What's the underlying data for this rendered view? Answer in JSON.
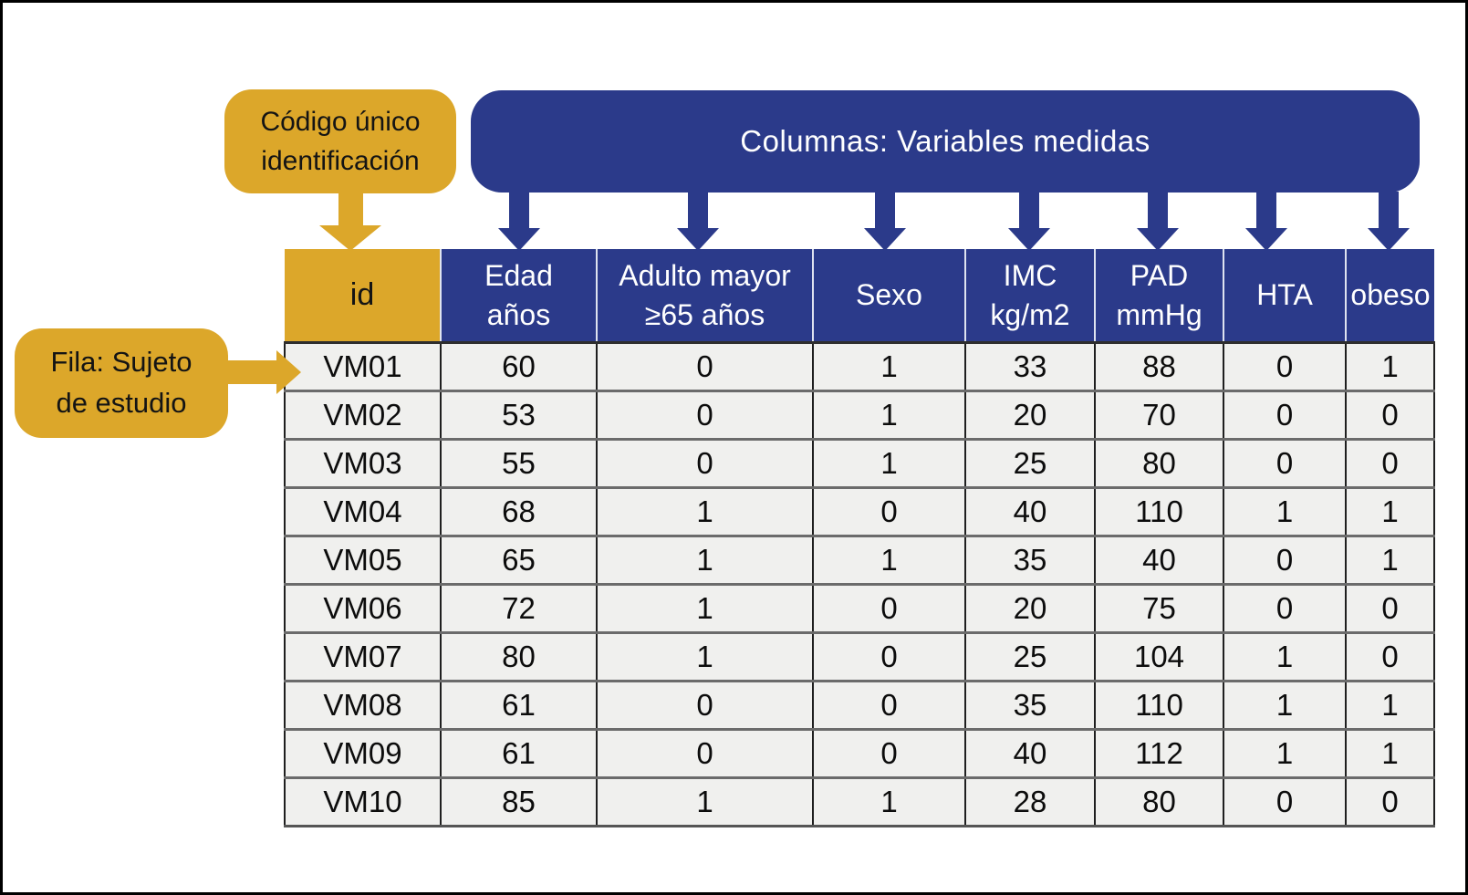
{
  "colors": {
    "accent_yellow": "#dca72a",
    "accent_blue": "#2b3a8a",
    "cell_background": "#f0f0ee"
  },
  "chart_data": {
    "type": "table",
    "annotations": {
      "id_callout": "Código único\nidentificación",
      "columns_banner": "Columnas: Variables medidas",
      "row_callout": "Fila: Sujeto\nde estudio"
    },
    "columns": [
      "id",
      "Edad\naños",
      "Adulto mayor\n≥65 años",
      "Sexo",
      "IMC\nkg/m2",
      "PAD\nmmHg",
      "HTA",
      "obeso"
    ],
    "rows": [
      [
        "VM01",
        60,
        0,
        1,
        33,
        88,
        0,
        1
      ],
      [
        "VM02",
        53,
        0,
        1,
        20,
        70,
        0,
        0
      ],
      [
        "VM03",
        55,
        0,
        1,
        25,
        80,
        0,
        0
      ],
      [
        "VM04",
        68,
        1,
        0,
        40,
        110,
        1,
        1
      ],
      [
        "VM05",
        65,
        1,
        1,
        35,
        40,
        0,
        1
      ],
      [
        "VM06",
        72,
        1,
        0,
        20,
        75,
        0,
        0
      ],
      [
        "VM07",
        80,
        1,
        0,
        25,
        104,
        1,
        0
      ],
      [
        "VM08",
        61,
        0,
        0,
        35,
        110,
        1,
        1
      ],
      [
        "VM09",
        61,
        0,
        0,
        40,
        112,
        1,
        1
      ],
      [
        "VM10",
        85,
        1,
        1,
        28,
        80,
        0,
        0
      ]
    ]
  }
}
